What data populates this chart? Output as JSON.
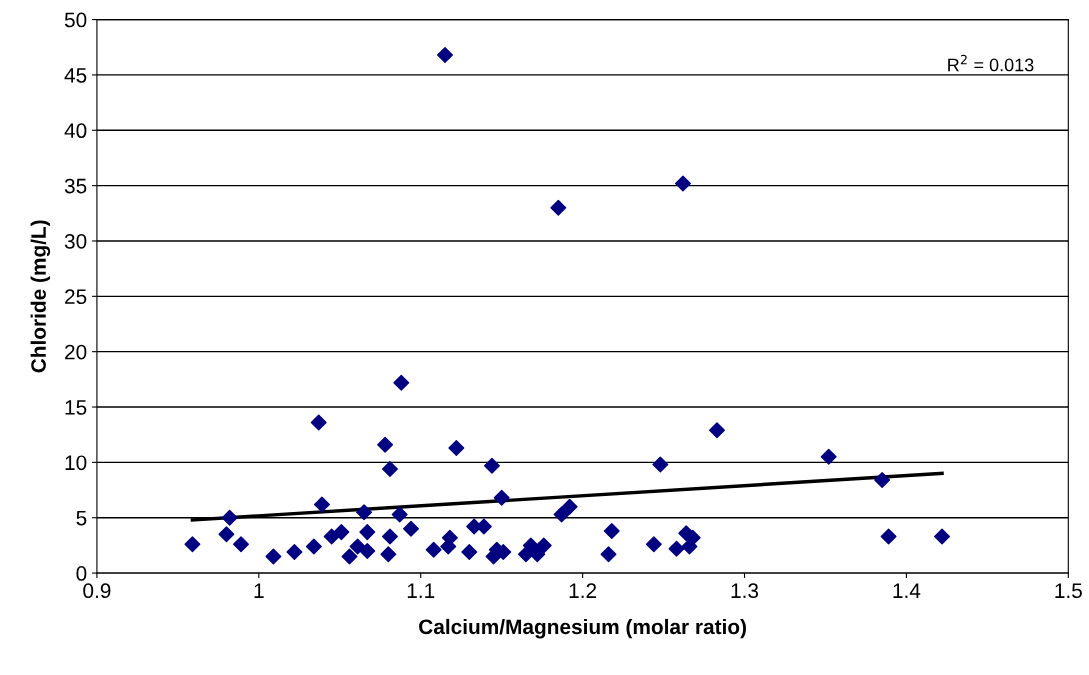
{
  "chart_data": {
    "type": "scatter",
    "xlabel": "Calcium/Magnesium (molar ratio)",
    "ylabel": "Chloride (mg/L)",
    "xlim": [
      0.9,
      1.5
    ],
    "xticks": [
      0.9,
      1,
      1.1,
      1.2,
      1.3,
      1.4,
      1.5
    ],
    "ylim": [
      0,
      50
    ],
    "yticks": [
      0,
      5,
      10,
      15,
      20,
      25,
      30,
      35,
      40,
      45,
      50
    ],
    "grid": "y",
    "marker": "diamond",
    "legend": false,
    "annotations": [
      "R$^{2}$ = 0.013"
    ],
    "series": [
      {
        "color": "#000080",
        "x": [
          0.959,
          0.98,
          0.982,
          0.989,
          1.009,
          1.022,
          1.034,
          1.037,
          1.039,
          1.045,
          1.051,
          1.056,
          1.061,
          1.065,
          1.067,
          1.067,
          1.078,
          1.081,
          1.081,
          1.08,
          1.087,
          1.088,
          1.094,
          1.108,
          1.115,
          1.117,
          1.118,
          1.122,
          1.13,
          1.133,
          1.139,
          1.144,
          1.145,
          1.147,
          1.15,
          1.151,
          1.165,
          1.168,
          1.172,
          1.176,
          1.185,
          1.187,
          1.192,
          1.216,
          1.218,
          1.244,
          1.248,
          1.258,
          1.262,
          1.264,
          1.266,
          1.268,
          1.283,
          1.352,
          1.385,
          1.389,
          1.422
        ],
        "values": [
          2.6,
          3.5,
          5.0,
          2.6,
          1.5,
          1.9,
          2.4,
          13.6,
          6.2,
          3.3,
          3.7,
          1.5,
          2.4,
          5.5,
          2.0,
          3.7,
          11.6,
          9.4,
          3.3,
          1.7,
          5.3,
          17.2,
          4.0,
          2.1,
          46.8,
          2.4,
          3.2,
          11.3,
          1.9,
          4.2,
          4.2,
          9.7,
          1.5,
          2.1,
          6.8,
          1.9,
          1.7,
          2.5,
          1.7,
          2.5,
          33.0,
          5.3,
          6.0,
          1.7,
          3.8,
          2.6,
          9.8,
          2.2,
          35.2,
          3.6,
          2.4,
          3.2,
          12.9,
          10.5,
          8.4,
          3.3,
          3.3
        ]
      },
      {
        "type": "line",
        "color": "#000000",
        "x": [
          0.959,
          1.422
        ],
        "values": [
          4.8,
          9.0
        ],
        "marker": "none"
      }
    ]
  }
}
